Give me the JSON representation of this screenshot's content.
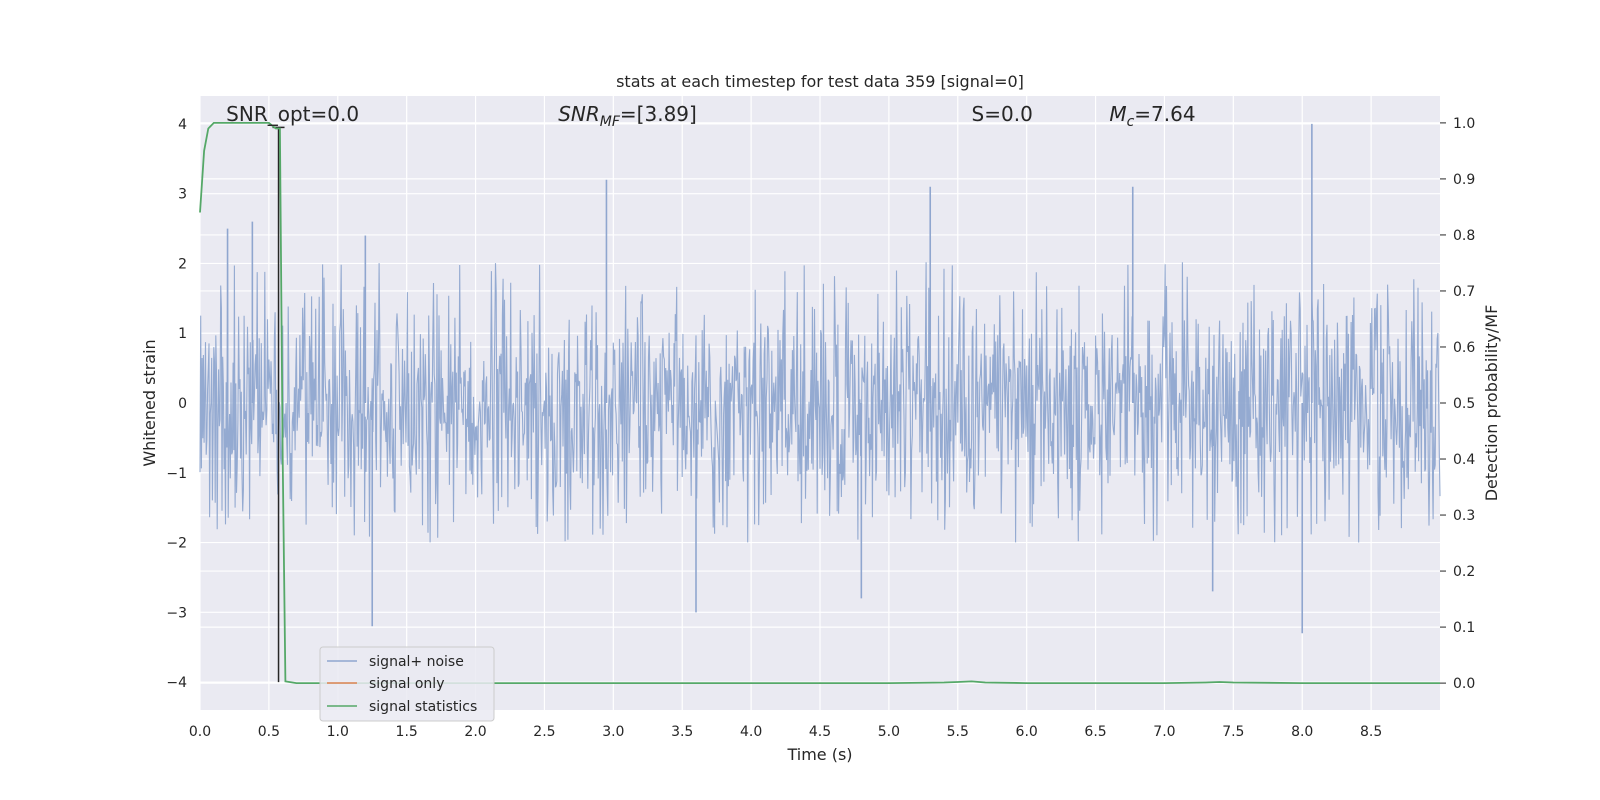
{
  "chart_data": {
    "type": "line",
    "title": "stats at each timestep for test data 359 [signal=0]",
    "xlabel": "Time (s)",
    "ylabel": "Whitened strain",
    "y2label": "Detection probability/MF",
    "xlim": [
      0.0,
      9.0
    ],
    "ylim": [
      -4.4,
      4.4
    ],
    "y2lim": [
      -0.048,
      1.048
    ],
    "x_ticks": [
      "0.0",
      "0.5",
      "1.0",
      "1.5",
      "2.0",
      "2.5",
      "3.0",
      "3.5",
      "4.0",
      "4.5",
      "5.0",
      "5.5",
      "6.0",
      "6.5",
      "7.0",
      "7.5",
      "8.0",
      "8.5"
    ],
    "x_tick_values": [
      0.0,
      0.5,
      1.0,
      1.5,
      2.0,
      2.5,
      3.0,
      3.5,
      4.0,
      4.5,
      5.0,
      5.5,
      6.0,
      6.5,
      7.0,
      7.5,
      8.0,
      8.5
    ],
    "y_ticks": [
      "−4",
      "−3",
      "−2",
      "−1",
      "0",
      "1",
      "2",
      "3",
      "4"
    ],
    "y_tick_values": [
      -4,
      -3,
      -2,
      -1,
      0,
      1,
      2,
      3,
      4
    ],
    "y2_ticks": [
      "0.0",
      "0.1",
      "0.2",
      "0.3",
      "0.4",
      "0.5",
      "0.6",
      "0.7",
      "0.8",
      "0.9",
      "1.0"
    ],
    "y2_tick_values": [
      0.0,
      0.1,
      0.2,
      0.3,
      0.4,
      0.5,
      0.6,
      0.7,
      0.8,
      0.9,
      1.0
    ],
    "grid": true,
    "legend_placement": "lower-left",
    "annotations": [
      {
        "text": "SNR_opt=0.0",
        "x": 0.19
      },
      {
        "text": "SNR",
        "sub": "MF",
        "suffix": "=[3.89]",
        "x": 2.6
      },
      {
        "text": "S",
        "suffix": "=0.0",
        "x": 5.6
      },
      {
        "text": "M",
        "sub": "c",
        "suffix": "=7.64",
        "x": 6.6
      }
    ],
    "series": [
      {
        "name": "signal+ noise",
        "color": "#8fa6cf",
        "kind": "noise",
        "amplitude_envelope": 1.5,
        "spikes": [
          {
            "x": 0.2,
            "y": 2.5
          },
          {
            "x": 0.38,
            "y": 2.6
          },
          {
            "x": 1.25,
            "y": -3.2
          },
          {
            "x": 2.95,
            "y": 3.2
          },
          {
            "x": 3.6,
            "y": -3.0
          },
          {
            "x": 4.8,
            "y": -2.8
          },
          {
            "x": 5.3,
            "y": 3.1
          },
          {
            "x": 6.77,
            "y": 3.1
          },
          {
            "x": 8.0,
            "y": -3.3
          },
          {
            "x": 8.07,
            "y": 4.0
          },
          {
            "x": 7.35,
            "y": -2.7
          },
          {
            "x": 1.2,
            "y": 2.4
          }
        ]
      },
      {
        "name": "signal only",
        "color": "#dd8452",
        "x": [
          0.0,
          9.0
        ],
        "y": [
          0.0,
          0.0
        ]
      },
      {
        "name": "signal statistics",
        "color": "#55a868",
        "axis": "y2",
        "x": [
          0.0,
          0.03,
          0.06,
          0.1,
          0.2,
          0.3,
          0.4,
          0.5,
          0.55,
          0.58,
          0.6,
          0.62,
          0.7,
          1.0,
          2.0,
          3.0,
          4.0,
          5.0,
          5.4,
          5.5,
          5.6,
          5.7,
          6.0,
          7.0,
          7.3,
          7.4,
          7.5,
          8.0,
          9.0
        ],
        "y": [
          0.84,
          0.95,
          0.99,
          1.0,
          1.0,
          1.0,
          1.0,
          1.0,
          0.99,
          0.99,
          0.4,
          0.003,
          0.0,
          0.0,
          0.0,
          0.0,
          0.0,
          0.0,
          0.001,
          0.002,
          0.003,
          0.001,
          0.0,
          0.0,
          0.001,
          0.002,
          0.001,
          0.0,
          0.0
        ]
      }
    ],
    "markers": [
      {
        "type": "vline",
        "color": "#262626",
        "x": 0.57,
        "y_from": -4.0,
        "y_to": 3.95
      }
    ]
  }
}
